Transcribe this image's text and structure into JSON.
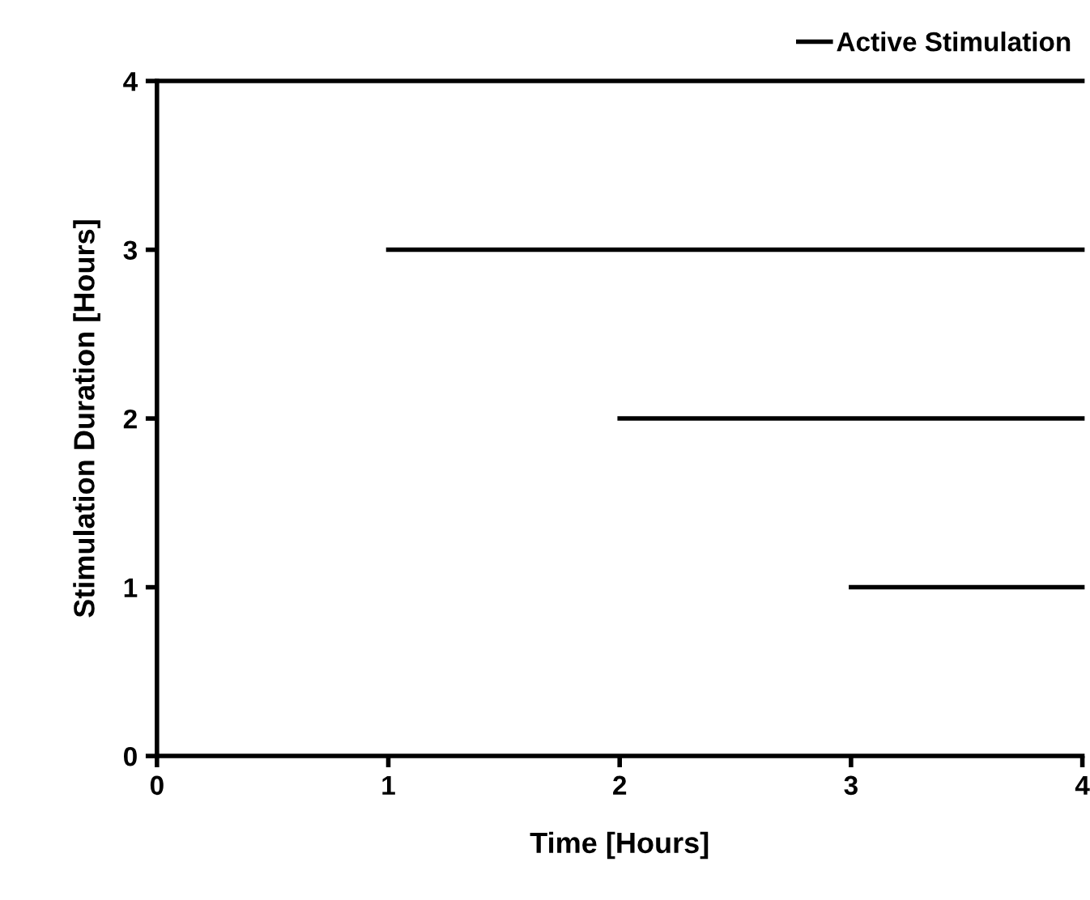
{
  "chart_data": {
    "type": "line",
    "xlabel": "Time [Hours]",
    "ylabel": "Stimulation Duration [Hours]",
    "series": [
      {
        "name": "Active Stimulation",
        "color": "#000000",
        "x": [
          0,
          4
        ],
        "values": [
          4,
          4
        ]
      },
      {
        "color": "#000000",
        "x": [
          1,
          4
        ],
        "values": [
          3,
          3
        ]
      },
      {
        "color": "#000000",
        "x": [
          2,
          4
        ],
        "values": [
          2,
          2
        ]
      },
      {
        "color": "#000000",
        "x": [
          3,
          4
        ],
        "values": [
          1,
          1
        ]
      }
    ],
    "xlim": [
      0,
      4
    ],
    "ylim": [
      0,
      4
    ],
    "xticks": [
      0,
      1,
      2,
      3,
      4
    ],
    "yticks": [
      0,
      1,
      2,
      3,
      4
    ],
    "grid": false,
    "legend": "top right",
    "marker": "none",
    "line_style": "solid"
  }
}
